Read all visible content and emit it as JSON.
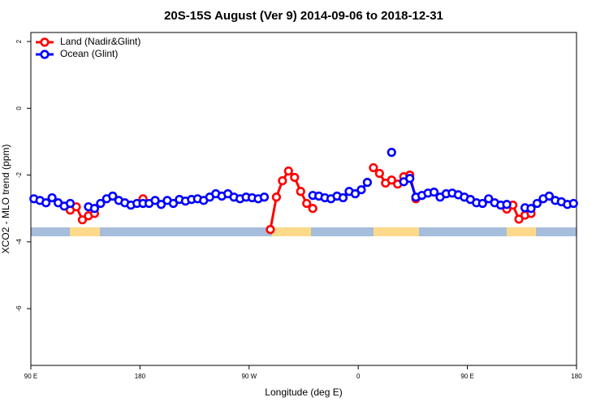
{
  "chart_data": {
    "type": "line",
    "title": "20S-15S August (Ver 9)   2014-09-06 to 2018-12-31",
    "xlabel": "Longitude (deg E)",
    "ylabel": "XCO2 - MLO trend (ppm)",
    "xlim": [
      90,
      540
    ],
    "ylim": [
      -7.7,
      2.27
    ],
    "xticks": [
      {
        "value": 90,
        "label": "90 E"
      },
      180,
      {
        "value": 270,
        "label": "90 W"
      },
      {
        "value": 360,
        "label": "0"
      },
      {
        "value": 450,
        "label": "90 E"
      },
      {
        "value": 540,
        "label": "180"
      }
    ],
    "yticks": [
      2,
      0,
      -2,
      -4,
      -6
    ],
    "legend": "top-left",
    "x": [
      92.5,
      97.5,
      102.5,
      107.5,
      112.5,
      117.5,
      122.5,
      127.5,
      132.5,
      137.5,
      142.5,
      147.5,
      152.5,
      157.5,
      162.5,
      167.5,
      172.5,
      177.5,
      182.5,
      187.5,
      192.5,
      197.5,
      202.5,
      207.5,
      212.5,
      217.5,
      222.5,
      227.5,
      232.5,
      237.5,
      242.5,
      247.5,
      252.5,
      257.5,
      262.5,
      267.5,
      272.5,
      277.5,
      282.5,
      287.5,
      292.5,
      297.5,
      302.5,
      307.5,
      312.5,
      317.5,
      322.5,
      327.5,
      332.5,
      337.5,
      342.5,
      347.5,
      352.5,
      357.5,
      362.5,
      367.5,
      372.5,
      377.5,
      382.5,
      387.5,
      392.5,
      397.5,
      402.5,
      407.5,
      412.5,
      417.5,
      422.5,
      427.5,
      432.5,
      437.5,
      442.5,
      447.5,
      452.5,
      457.5,
      462.5,
      467.5,
      472.5,
      477.5,
      482.5,
      487.5,
      492.5,
      497.5,
      502.5,
      507.5,
      512.5,
      517.5,
      522.5,
      527.5,
      532.5,
      537.5
    ],
    "series": [
      {
        "name": "Land (Nadir&Glint)",
        "color": "#ff0000",
        "values": [
          null,
          null,
          null,
          null,
          null,
          null,
          -3.05,
          -2.95,
          -3.34,
          -3.22,
          -3.15,
          null,
          null,
          null,
          null,
          null,
          null,
          null,
          -2.71,
          null,
          null,
          null,
          null,
          null,
          null,
          null,
          null,
          null,
          null,
          null,
          null,
          null,
          null,
          null,
          null,
          null,
          null,
          null,
          null,
          -3.63,
          -2.66,
          -2.17,
          -1.88,
          -2.07,
          -2.49,
          -2.85,
          -3.0,
          null,
          null,
          null,
          null,
          null,
          null,
          null,
          null,
          null,
          -1.78,
          -1.95,
          -2.24,
          -2.15,
          -2.27,
          -2.05,
          -2.0,
          -2.71,
          null,
          null,
          null,
          null,
          null,
          null,
          null,
          null,
          null,
          null,
          null,
          null,
          null,
          null,
          -3.02,
          -2.9,
          -3.32,
          -3.2,
          -3.15,
          null,
          null,
          null,
          null,
          null,
          null,
          null
        ]
      },
      {
        "name": "Ocean (Glint)",
        "color": "#0000ff",
        "values": [
          -2.71,
          -2.76,
          -2.83,
          -2.68,
          -2.83,
          -2.93,
          -2.85,
          null,
          null,
          -2.95,
          -3.0,
          -2.85,
          -2.71,
          -2.63,
          -2.76,
          -2.83,
          -2.9,
          -2.85,
          -2.85,
          -2.85,
          -2.76,
          -2.88,
          -2.76,
          -2.85,
          -2.73,
          -2.78,
          -2.73,
          -2.71,
          -2.76,
          -2.66,
          -2.56,
          -2.63,
          -2.56,
          -2.66,
          -2.71,
          -2.66,
          -2.68,
          -2.71,
          -2.66,
          null,
          null,
          null,
          null,
          null,
          null,
          null,
          -2.61,
          -2.63,
          -2.68,
          -2.71,
          -2.63,
          -2.68,
          -2.49,
          -2.56,
          -2.44,
          -2.22,
          null,
          null,
          null,
          -1.32,
          null,
          -2.2,
          -2.1,
          -2.66,
          -2.61,
          -2.54,
          -2.51,
          -2.66,
          -2.56,
          -2.54,
          -2.59,
          -2.66,
          -2.73,
          -2.83,
          -2.85,
          -2.71,
          -2.83,
          -2.9,
          -2.88,
          null,
          null,
          -2.98,
          -3.0,
          -2.85,
          -2.71,
          -2.63,
          -2.76,
          -2.8,
          -2.88,
          -2.85
        ]
      }
    ]
  }
}
